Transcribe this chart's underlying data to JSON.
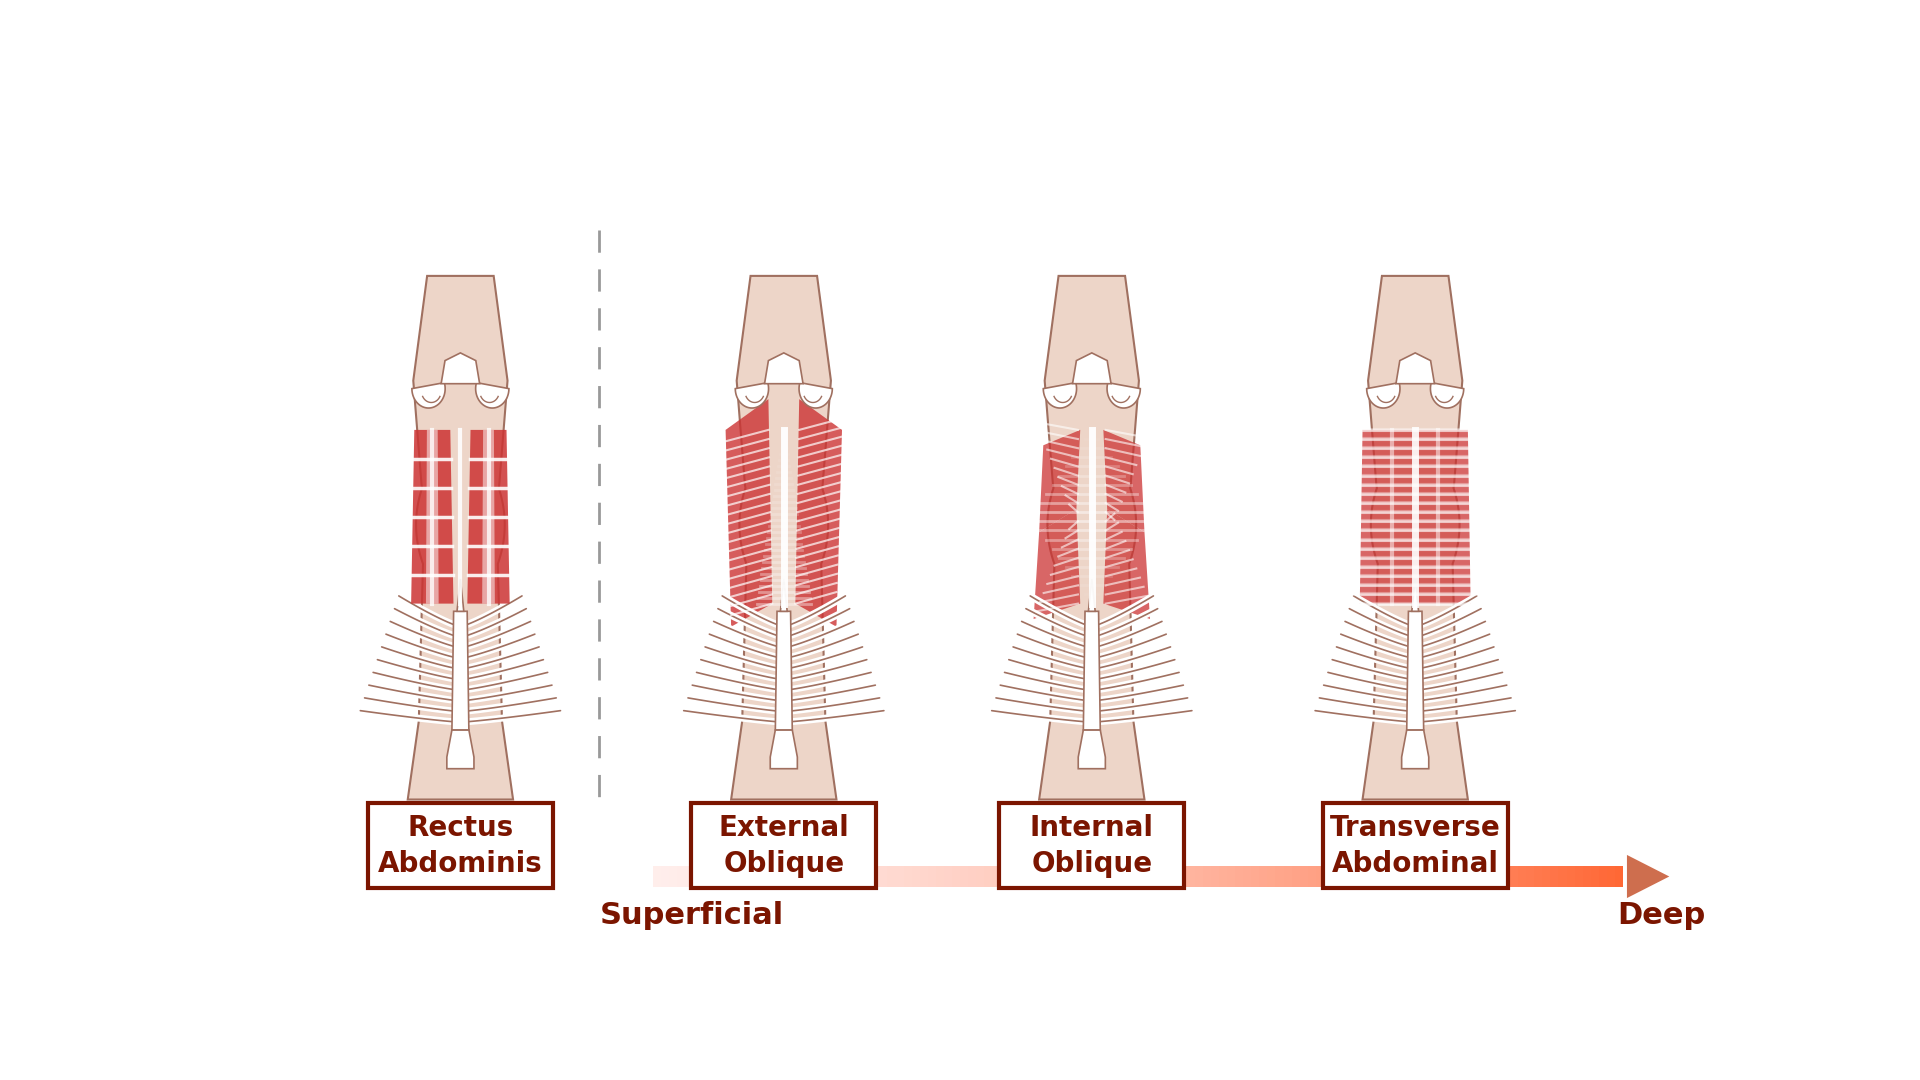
{
  "background_color": "#ffffff",
  "title_color": "#7B1500",
  "title_border_color": "#7B1500",
  "label_color": "#7B1500",
  "skin_color": "#EDD5C8",
  "skin_border_color": "#A07060",
  "bone_color": "#FFFFFF",
  "bone_border_color": "#A07060",
  "muscle_red": "#CC3333",
  "muscle_highlight": "#FFFFFF",
  "arrow_end_color": "#CC6644",
  "dashed_line_color": "#999999",
  "panels": [
    {
      "title": "Rectus\nAbdominis",
      "muscle_type": "rectus"
    },
    {
      "title": "External\nOblique",
      "muscle_type": "external_oblique"
    },
    {
      "title": "Internal\nOblique",
      "muscle_type": "internal_oblique"
    },
    {
      "title": "Transverse\nAbdominal",
      "muscle_type": "transverse"
    }
  ],
  "superficial_label": "Superficial",
  "deep_label": "Deep",
  "title_fontsize": 20,
  "label_fontsize": 22,
  "figure_width": 19.2,
  "figure_height": 10.8
}
